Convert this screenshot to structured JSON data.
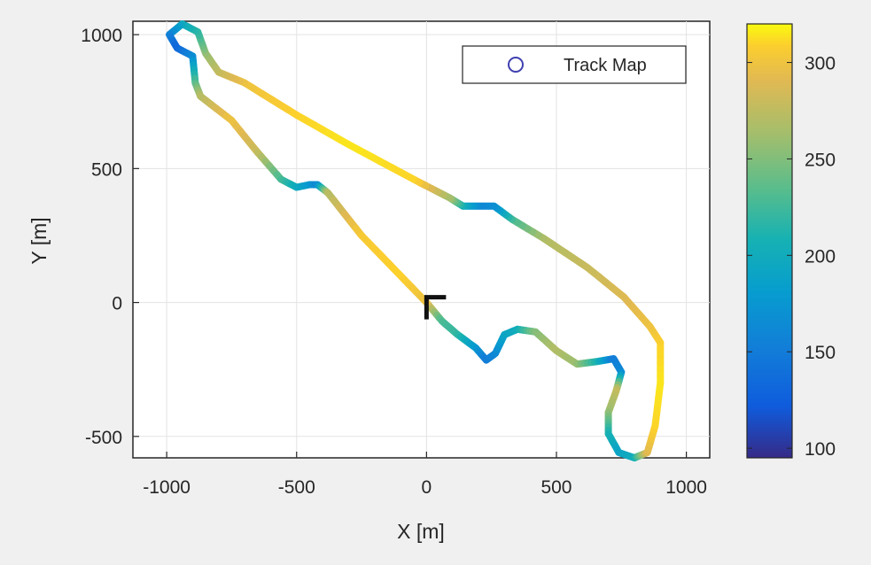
{
  "chart_data": {
    "type": "scatter",
    "title": "",
    "xlabel": "X [m]",
    "ylabel": "Y [m]",
    "xlim": [
      -1130,
      1090
    ],
    "ylim": [
      -580,
      1050
    ],
    "xticks": [
      -1000,
      -500,
      0,
      500,
      1000
    ],
    "xtick_labels": [
      "-1000",
      "-500",
      "0",
      "500",
      "1000"
    ],
    "yticks": [
      -500,
      0,
      500,
      1000
    ],
    "ytick_labels": [
      "-500",
      "0",
      "500",
      "1000"
    ],
    "grid": true,
    "legend": {
      "entries": [
        "Track Map"
      ],
      "placement": "top-right",
      "marker": "circle",
      "marker_color": "#4040b0"
    },
    "colorbar": {
      "range": [
        95,
        320
      ],
      "ticks": [
        100,
        150,
        200,
        250,
        300
      ],
      "tick_labels": [
        "100",
        "150",
        "200",
        "250",
        "300"
      ],
      "colormap": "parula"
    },
    "start_marker": {
      "x": 0,
      "y": -10,
      "shape": "arrow"
    },
    "series": [
      {
        "name": "Track Map",
        "points": [
          {
            "x": 0,
            "y": 0,
            "v": 300
          },
          {
            "x": 60,
            "y": -70,
            "v": 230
          },
          {
            "x": 120,
            "y": -120,
            "v": 220
          },
          {
            "x": 190,
            "y": -170,
            "v": 180
          },
          {
            "x": 230,
            "y": -215,
            "v": 150
          },
          {
            "x": 265,
            "y": -190,
            "v": 160
          },
          {
            "x": 300,
            "y": -120,
            "v": 190
          },
          {
            "x": 350,
            "y": -100,
            "v": 200
          },
          {
            "x": 420,
            "y": -110,
            "v": 250
          },
          {
            "x": 500,
            "y": -180,
            "v": 270
          },
          {
            "x": 580,
            "y": -230,
            "v": 260
          },
          {
            "x": 660,
            "y": -220,
            "v": 210
          },
          {
            "x": 720,
            "y": -210,
            "v": 150
          },
          {
            "x": 750,
            "y": -260,
            "v": 160
          },
          {
            "x": 730,
            "y": -330,
            "v": 280
          },
          {
            "x": 700,
            "y": -410,
            "v": 260
          },
          {
            "x": 700,
            "y": -490,
            "v": 210
          },
          {
            "x": 740,
            "y": -560,
            "v": 190
          },
          {
            "x": 800,
            "y": -580,
            "v": 200
          },
          {
            "x": 850,
            "y": -560,
            "v": 290
          },
          {
            "x": 880,
            "y": -460,
            "v": 310
          },
          {
            "x": 900,
            "y": -300,
            "v": 315
          },
          {
            "x": 900,
            "y": -150,
            "v": 310
          },
          {
            "x": 860,
            "y": -90,
            "v": 300
          },
          {
            "x": 760,
            "y": 20,
            "v": 290
          },
          {
            "x": 620,
            "y": 130,
            "v": 280
          },
          {
            "x": 450,
            "y": 240,
            "v": 270
          },
          {
            "x": 330,
            "y": 310,
            "v": 230
          },
          {
            "x": 260,
            "y": 360,
            "v": 170
          },
          {
            "x": 200,
            "y": 360,
            "v": 160
          },
          {
            "x": 140,
            "y": 360,
            "v": 200
          },
          {
            "x": 90,
            "y": 390,
            "v": 260
          },
          {
            "x": -50,
            "y": 460,
            "v": 310
          },
          {
            "x": -300,
            "y": 590,
            "v": 315
          },
          {
            "x": -500,
            "y": 700,
            "v": 310
          },
          {
            "x": -700,
            "y": 820,
            "v": 300
          },
          {
            "x": -800,
            "y": 860,
            "v": 280
          },
          {
            "x": -850,
            "y": 930,
            "v": 260
          },
          {
            "x": -880,
            "y": 1010,
            "v": 220
          },
          {
            "x": -940,
            "y": 1040,
            "v": 200
          },
          {
            "x": -990,
            "y": 1000,
            "v": 160
          },
          {
            "x": -960,
            "y": 950,
            "v": 130
          },
          {
            "x": -900,
            "y": 920,
            "v": 160
          },
          {
            "x": -890,
            "y": 820,
            "v": 230
          },
          {
            "x": -870,
            "y": 770,
            "v": 270
          },
          {
            "x": -750,
            "y": 680,
            "v": 300
          },
          {
            "x": -650,
            "y": 560,
            "v": 280
          },
          {
            "x": -560,
            "y": 460,
            "v": 230
          },
          {
            "x": -500,
            "y": 430,
            "v": 200
          },
          {
            "x": -450,
            "y": 440,
            "v": 180
          },
          {
            "x": -420,
            "y": 440,
            "v": 160
          },
          {
            "x": -380,
            "y": 410,
            "v": 270
          },
          {
            "x": -250,
            "y": 250,
            "v": 305
          },
          {
            "x": -100,
            "y": 100,
            "v": 310
          },
          {
            "x": -10,
            "y": 10,
            "v": 300
          }
        ]
      }
    ]
  }
}
